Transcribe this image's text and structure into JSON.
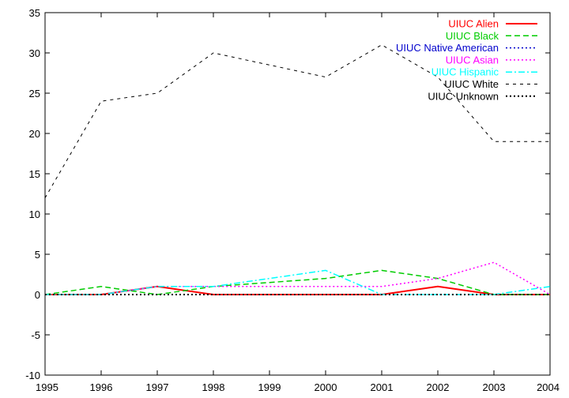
{
  "chart_data": {
    "type": "line",
    "title": "",
    "xlabel": "",
    "ylabel": "",
    "xlim": [
      1995,
      2004
    ],
    "ylim": [
      -10,
      35
    ],
    "xticks": [
      1995,
      1996,
      1997,
      1998,
      1999,
      2000,
      2001,
      2002,
      2003,
      2004
    ],
    "yticks": [
      -10,
      -5,
      0,
      5,
      10,
      15,
      20,
      25,
      30,
      35
    ],
    "grid": false,
    "legend_position": "top-right",
    "x": [
      1995,
      1996,
      1997,
      1998,
      1999,
      2000,
      2001,
      2002,
      2003,
      2004
    ],
    "series": [
      {
        "name": "UIUC Alien",
        "color": "#ff0000",
        "dash": "solid",
        "width": 2,
        "values": [
          0,
          0,
          1,
          0,
          0,
          0,
          0,
          1,
          0,
          0
        ]
      },
      {
        "name": "UIUC Black",
        "color": "#00cc00",
        "dash": "long-dash",
        "width": 1.5,
        "values": [
          0,
          1,
          0,
          1,
          1.5,
          2,
          3,
          2,
          0,
          0
        ]
      },
      {
        "name": "UIUC Native American",
        "color": "#0000cc",
        "dash": "dot",
        "width": 1.5,
        "values": [
          0,
          0,
          0,
          0,
          0,
          0,
          0,
          0,
          0,
          0
        ]
      },
      {
        "name": "UIUC Asian",
        "color": "#ff00ff",
        "dash": "dot",
        "width": 1.5,
        "values": [
          0,
          0,
          1,
          1,
          1,
          1,
          1,
          2,
          4,
          0
        ]
      },
      {
        "name": "UIUC Hispanic",
        "color": "#00ffff",
        "dash": "dash-dot",
        "width": 1.5,
        "values": [
          0,
          0,
          1,
          1,
          2,
          3,
          0,
          0,
          0,
          1
        ]
      },
      {
        "name": "UIUC White",
        "color": "#000000",
        "dash": "dash",
        "width": 1,
        "values": [
          12,
          24,
          25,
          30,
          28.5,
          27,
          31,
          27,
          19,
          19
        ]
      },
      {
        "name": "UIUC Unknown",
        "color": "#000000",
        "dash": "dot",
        "width": 2,
        "values": [
          0,
          0,
          0,
          0,
          0,
          0,
          0,
          0,
          0,
          0
        ]
      }
    ]
  }
}
